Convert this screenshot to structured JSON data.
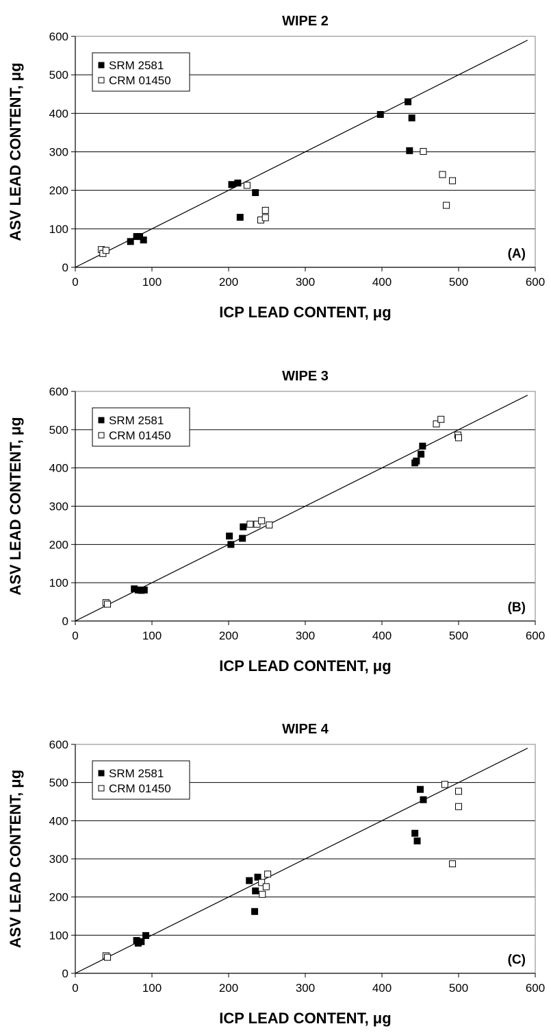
{
  "chart_data": [
    {
      "type": "scatter",
      "title": "WIPE 2",
      "xlabel": "ICP LEAD CONTENT, μg",
      "ylabel": "ASV LEAD CONTENT, μg",
      "xlim": [
        0,
        600
      ],
      "ylim": [
        0,
        600
      ],
      "xticks": [
        "0",
        "100",
        "200",
        "300",
        "400",
        "500",
        "600"
      ],
      "yticks": [
        "0",
        "100",
        "200",
        "300",
        "400",
        "500",
        "600"
      ],
      "grid": "horizontal",
      "legend_position": "top-left",
      "panel_label": "(A)",
      "reference_line": [
        [
          0,
          0
        ],
        [
          590,
          590
        ]
      ],
      "series": [
        {
          "name": "SRM 2581",
          "marker": "filled-square",
          "color": "#000000",
          "points": [
            [
              72,
              67
            ],
            [
              80,
              80
            ],
            [
              84,
              80
            ],
            [
              89,
              71
            ],
            [
              204,
              215
            ],
            [
              212,
              219
            ],
            [
              215,
              130
            ],
            [
              235,
              194
            ],
            [
              398,
              397
            ],
            [
              434,
              430
            ],
            [
              436,
              303
            ],
            [
              439,
              388
            ]
          ]
        },
        {
          "name": "CRM 01450",
          "marker": "open-square",
          "color": "#000000",
          "points": [
            [
              34,
              46
            ],
            [
              36,
              36
            ],
            [
              40,
              44
            ],
            [
              224,
              213
            ],
            [
              242,
              123
            ],
            [
              248,
              148
            ],
            [
              248,
              129
            ],
            [
              454,
              301
            ],
            [
              479,
              241
            ],
            [
              484,
              161
            ],
            [
              492,
              225
            ]
          ]
        }
      ]
    },
    {
      "type": "scatter",
      "title": "WIPE 3",
      "xlabel": "ICP LEAD CONTENT, μg",
      "ylabel": "ASV LEAD CONTENT, μg",
      "xlim": [
        0,
        600
      ],
      "ylim": [
        0,
        600
      ],
      "xticks": [
        "0",
        "100",
        "200",
        "300",
        "400",
        "500",
        "600"
      ],
      "yticks": [
        "0",
        "100",
        "200",
        "300",
        "400",
        "500",
        "600"
      ],
      "grid": "horizontal",
      "legend_position": "top-left",
      "panel_label": "(B)",
      "reference_line": [
        [
          0,
          0
        ],
        [
          590,
          590
        ]
      ],
      "series": [
        {
          "name": "SRM 2581",
          "marker": "filled-square",
          "color": "#000000",
          "points": [
            [
              77,
              84
            ],
            [
              82,
              81
            ],
            [
              86,
              80
            ],
            [
              90,
              81
            ],
            [
              201,
              222
            ],
            [
              203,
              200
            ],
            [
              218,
              216
            ],
            [
              219,
              246
            ],
            [
              443,
              413
            ],
            [
              445,
              418
            ],
            [
              451,
              436
            ],
            [
              453,
              457
            ]
          ]
        },
        {
          "name": "CRM 01450",
          "marker": "open-square",
          "color": "#000000",
          "points": [
            [
              40,
              48
            ],
            [
              42,
              44
            ],
            [
              228,
              253
            ],
            [
              237,
              253
            ],
            [
              243,
              262
            ],
            [
              253,
              251
            ],
            [
              471,
              515
            ],
            [
              477,
              527
            ],
            [
              499,
              486
            ],
            [
              500,
              479
            ]
          ]
        }
      ]
    },
    {
      "type": "scatter",
      "title": "WIPE 4",
      "xlabel": "ICP LEAD CONTENT, μg",
      "ylabel": "ASV LEAD CONTENT, μg",
      "xlim": [
        0,
        600
      ],
      "ylim": [
        0,
        600
      ],
      "xticks": [
        "0",
        "100",
        "200",
        "300",
        "400",
        "500",
        "600"
      ],
      "yticks": [
        "0",
        "100",
        "200",
        "300",
        "400",
        "500",
        "600"
      ],
      "grid": "horizontal",
      "legend_position": "top-left",
      "panel_label": "(C)",
      "reference_line": [
        [
          0,
          0
        ],
        [
          590,
          590
        ]
      ],
      "series": [
        {
          "name": "SRM 2581",
          "marker": "filled-square",
          "color": "#000000",
          "points": [
            [
              80,
              86
            ],
            [
              82,
              79
            ],
            [
              86,
              83
            ],
            [
              92,
              99
            ],
            [
              227,
              243
            ],
            [
              235,
              216
            ],
            [
              234,
              162
            ],
            [
              238,
              252
            ],
            [
              443,
              367
            ],
            [
              446,
              347
            ],
            [
              450,
              482
            ],
            [
              454,
              455
            ]
          ]
        },
        {
          "name": "CRM 01450",
          "marker": "open-square",
          "color": "#000000",
          "points": [
            [
              40,
              46
            ],
            [
              42,
              42
            ],
            [
              243,
              238
            ],
            [
              244,
              207
            ],
            [
              249,
              227
            ],
            [
              251,
              260
            ],
            [
              482,
              495
            ],
            [
              492,
              287
            ],
            [
              500,
              437
            ],
            [
              500,
              477
            ]
          ]
        }
      ]
    }
  ]
}
